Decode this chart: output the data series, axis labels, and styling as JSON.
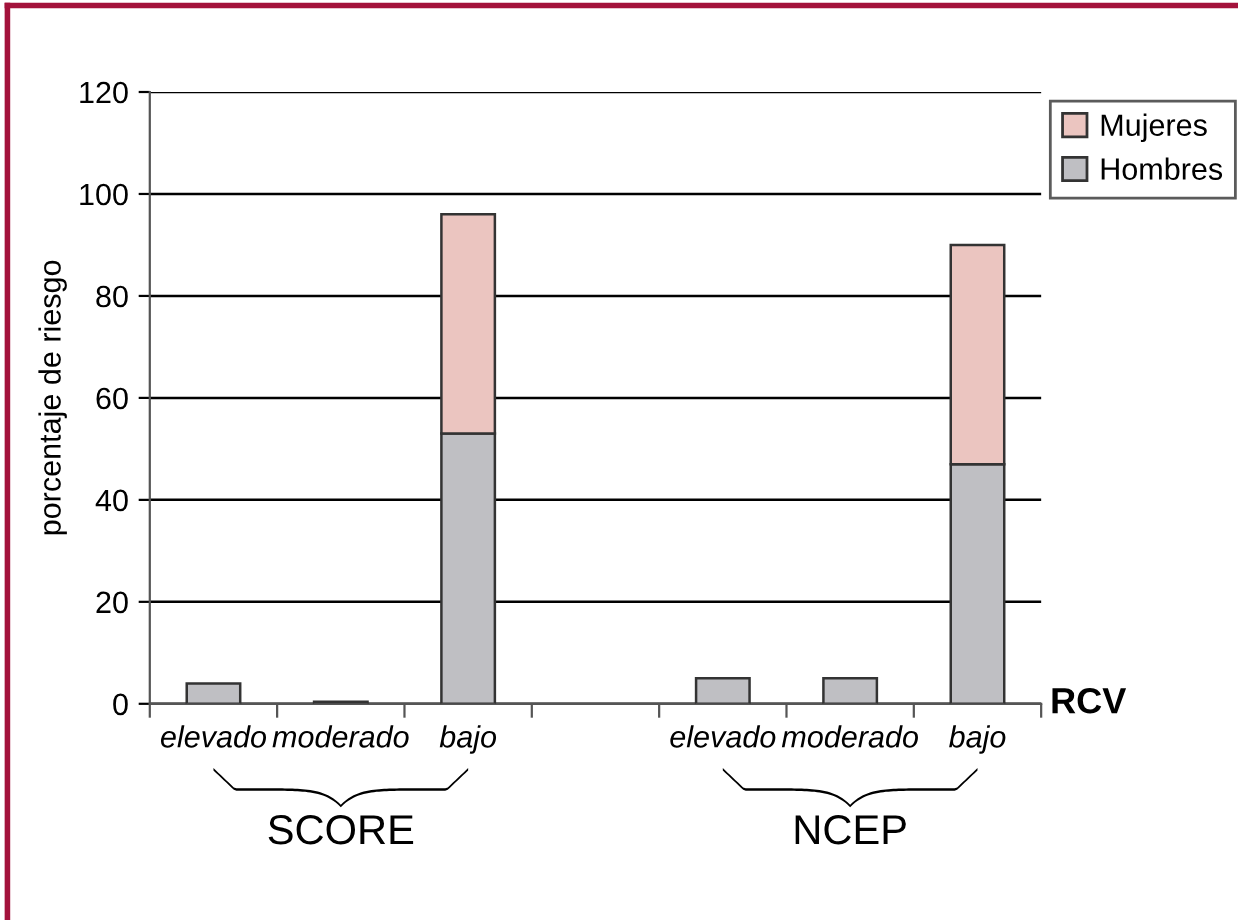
{
  "chart_data": {
    "type": "bar",
    "stacked": true,
    "ylabel": "porcentaje de riesgo",
    "xlabel": "RCV",
    "categories": [
      "elevado",
      "moderado",
      "bajo",
      null,
      "elevado",
      "moderado",
      "bajo"
    ],
    "series": [
      {
        "name": "Hombres",
        "color": "#bfbfc3",
        "values": [
          4,
          0.4,
          53,
          null,
          5,
          5,
          47
        ]
      },
      {
        "name": "Mujeres",
        "color": "#ebc5c0",
        "values": [
          null,
          null,
          43,
          null,
          null,
          null,
          43
        ]
      }
    ],
    "ylim": [
      0,
      120
    ],
    "yticks": [
      0,
      20,
      40,
      60,
      80,
      100,
      120
    ],
    "grid": "y",
    "legend": "top right",
    "annotations": [
      "SCORE",
      "NCEP"
    ]
  }
}
